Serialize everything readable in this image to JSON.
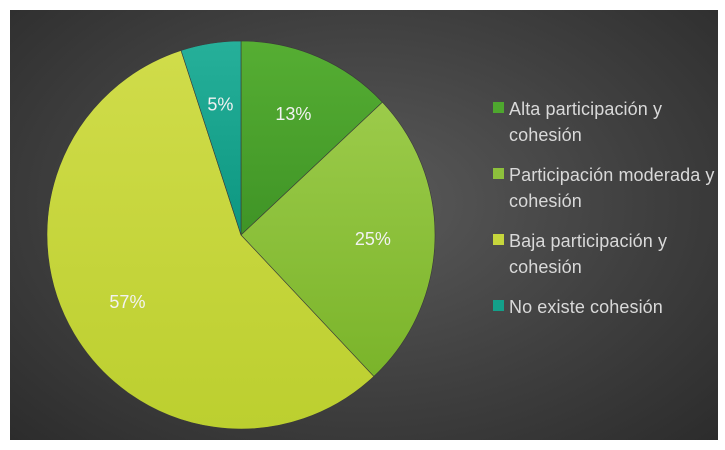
{
  "chart_data": {
    "type": "pie",
    "slices": [
      {
        "label": "Alta participación y cohesión",
        "value": 13,
        "data_label": "13%",
        "color": "#4ea72e"
      },
      {
        "label": "Participación moderada y cohesión",
        "value": 25,
        "data_label": "25%",
        "color": "#8dc03c"
      },
      {
        "label": "Baja participación y cohesión",
        "value": 57,
        "data_label": "57%",
        "color": "#c6d63c"
      },
      {
        "label": "No existe cohesión",
        "value": 5,
        "data_label": "5%",
        "color": "#13a08a"
      }
    ],
    "legend_position": "right",
    "background": "#404040"
  }
}
